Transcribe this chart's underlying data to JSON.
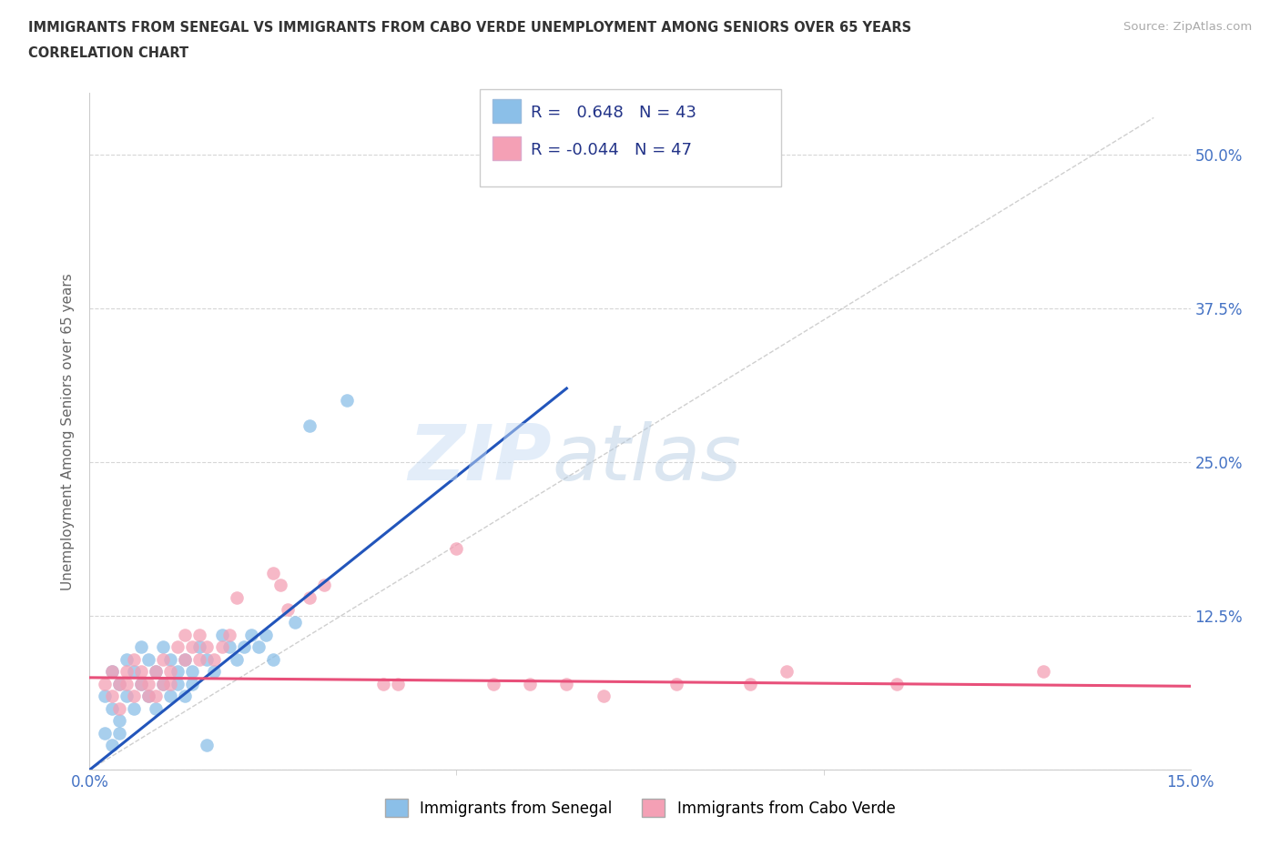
{
  "title_line1": "IMMIGRANTS FROM SENEGAL VS IMMIGRANTS FROM CABO VERDE UNEMPLOYMENT AMONG SENIORS OVER 65 YEARS",
  "title_line2": "CORRELATION CHART",
  "source_text": "Source: ZipAtlas.com",
  "ylabel": "Unemployment Among Seniors over 65 years",
  "xlim": [
    0.0,
    0.15
  ],
  "ylim": [
    0.0,
    0.55
  ],
  "ytick_labels": [
    "0.0%",
    "12.5%",
    "25.0%",
    "37.5%",
    "50.0%"
  ],
  "ytick_values": [
    0.0,
    0.125,
    0.25,
    0.375,
    0.5
  ],
  "xtick_values": [
    0.0,
    0.15
  ],
  "xtick_labels": [
    "0.0%",
    "15.0%"
  ],
  "right_ytick_labels": [
    "50.0%",
    "37.5%",
    "25.0%",
    "12.5%"
  ],
  "right_ytick_values": [
    0.5,
    0.375,
    0.25,
    0.125
  ],
  "grid_color": "#cccccc",
  "background_color": "#ffffff",
  "senegal_color": "#8bbfe8",
  "caboverde_color": "#f4a0b5",
  "senegal_line_color": "#2255bb",
  "caboverde_line_color": "#e8507a",
  "diag_line_color": "#bbbbbb",
  "legend_R1": "0.648",
  "legend_N1": "43",
  "legend_R2": "-0.044",
  "legend_N2": "47",
  "watermark_zip": "ZIP",
  "watermark_atlas": "atlas",
  "senegal_scatter": [
    [
      0.002,
      0.06
    ],
    [
      0.003,
      0.05
    ],
    [
      0.003,
      0.08
    ],
    [
      0.004,
      0.07
    ],
    [
      0.004,
      0.04
    ],
    [
      0.005,
      0.09
    ],
    [
      0.005,
      0.06
    ],
    [
      0.006,
      0.08
    ],
    [
      0.006,
      0.05
    ],
    [
      0.007,
      0.07
    ],
    [
      0.007,
      0.1
    ],
    [
      0.008,
      0.06
    ],
    [
      0.008,
      0.09
    ],
    [
      0.009,
      0.05
    ],
    [
      0.009,
      0.08
    ],
    [
      0.01,
      0.07
    ],
    [
      0.01,
      0.1
    ],
    [
      0.011,
      0.06
    ],
    [
      0.011,
      0.09
    ],
    [
      0.012,
      0.08
    ],
    [
      0.012,
      0.07
    ],
    [
      0.013,
      0.09
    ],
    [
      0.013,
      0.06
    ],
    [
      0.014,
      0.08
    ],
    [
      0.014,
      0.07
    ],
    [
      0.015,
      0.1
    ],
    [
      0.016,
      0.09
    ],
    [
      0.017,
      0.08
    ],
    [
      0.018,
      0.11
    ],
    [
      0.019,
      0.1
    ],
    [
      0.02,
      0.09
    ],
    [
      0.021,
      0.1
    ],
    [
      0.022,
      0.11
    ],
    [
      0.023,
      0.1
    ],
    [
      0.03,
      0.28
    ],
    [
      0.035,
      0.3
    ],
    [
      0.002,
      0.03
    ],
    [
      0.003,
      0.02
    ],
    [
      0.004,
      0.03
    ],
    [
      0.016,
      0.02
    ],
    [
      0.024,
      0.11
    ],
    [
      0.025,
      0.09
    ],
    [
      0.028,
      0.12
    ]
  ],
  "caboverde_scatter": [
    [
      0.002,
      0.07
    ],
    [
      0.003,
      0.08
    ],
    [
      0.003,
      0.06
    ],
    [
      0.004,
      0.07
    ],
    [
      0.004,
      0.05
    ],
    [
      0.005,
      0.08
    ],
    [
      0.005,
      0.07
    ],
    [
      0.006,
      0.06
    ],
    [
      0.006,
      0.09
    ],
    [
      0.007,
      0.07
    ],
    [
      0.007,
      0.08
    ],
    [
      0.008,
      0.06
    ],
    [
      0.008,
      0.07
    ],
    [
      0.009,
      0.08
    ],
    [
      0.009,
      0.06
    ],
    [
      0.01,
      0.07
    ],
    [
      0.01,
      0.09
    ],
    [
      0.011,
      0.07
    ],
    [
      0.011,
      0.08
    ],
    [
      0.012,
      0.1
    ],
    [
      0.013,
      0.09
    ],
    [
      0.013,
      0.11
    ],
    [
      0.014,
      0.1
    ],
    [
      0.015,
      0.09
    ],
    [
      0.015,
      0.11
    ],
    [
      0.016,
      0.1
    ],
    [
      0.017,
      0.09
    ],
    [
      0.018,
      0.1
    ],
    [
      0.019,
      0.11
    ],
    [
      0.02,
      0.14
    ],
    [
      0.025,
      0.16
    ],
    [
      0.026,
      0.15
    ],
    [
      0.027,
      0.13
    ],
    [
      0.03,
      0.14
    ],
    [
      0.032,
      0.15
    ],
    [
      0.04,
      0.07
    ],
    [
      0.042,
      0.07
    ],
    [
      0.05,
      0.18
    ],
    [
      0.055,
      0.07
    ],
    [
      0.06,
      0.07
    ],
    [
      0.065,
      0.07
    ],
    [
      0.07,
      0.06
    ],
    [
      0.08,
      0.07
    ],
    [
      0.09,
      0.07
    ],
    [
      0.095,
      0.08
    ],
    [
      0.11,
      0.07
    ],
    [
      0.13,
      0.08
    ]
  ],
  "senegal_line_x": [
    0.0,
    0.065
  ],
  "senegal_line_y": [
    0.0,
    0.31
  ],
  "caboverde_line_x": [
    0.0,
    0.15
  ],
  "caboverde_line_y": [
    0.075,
    0.068
  ]
}
